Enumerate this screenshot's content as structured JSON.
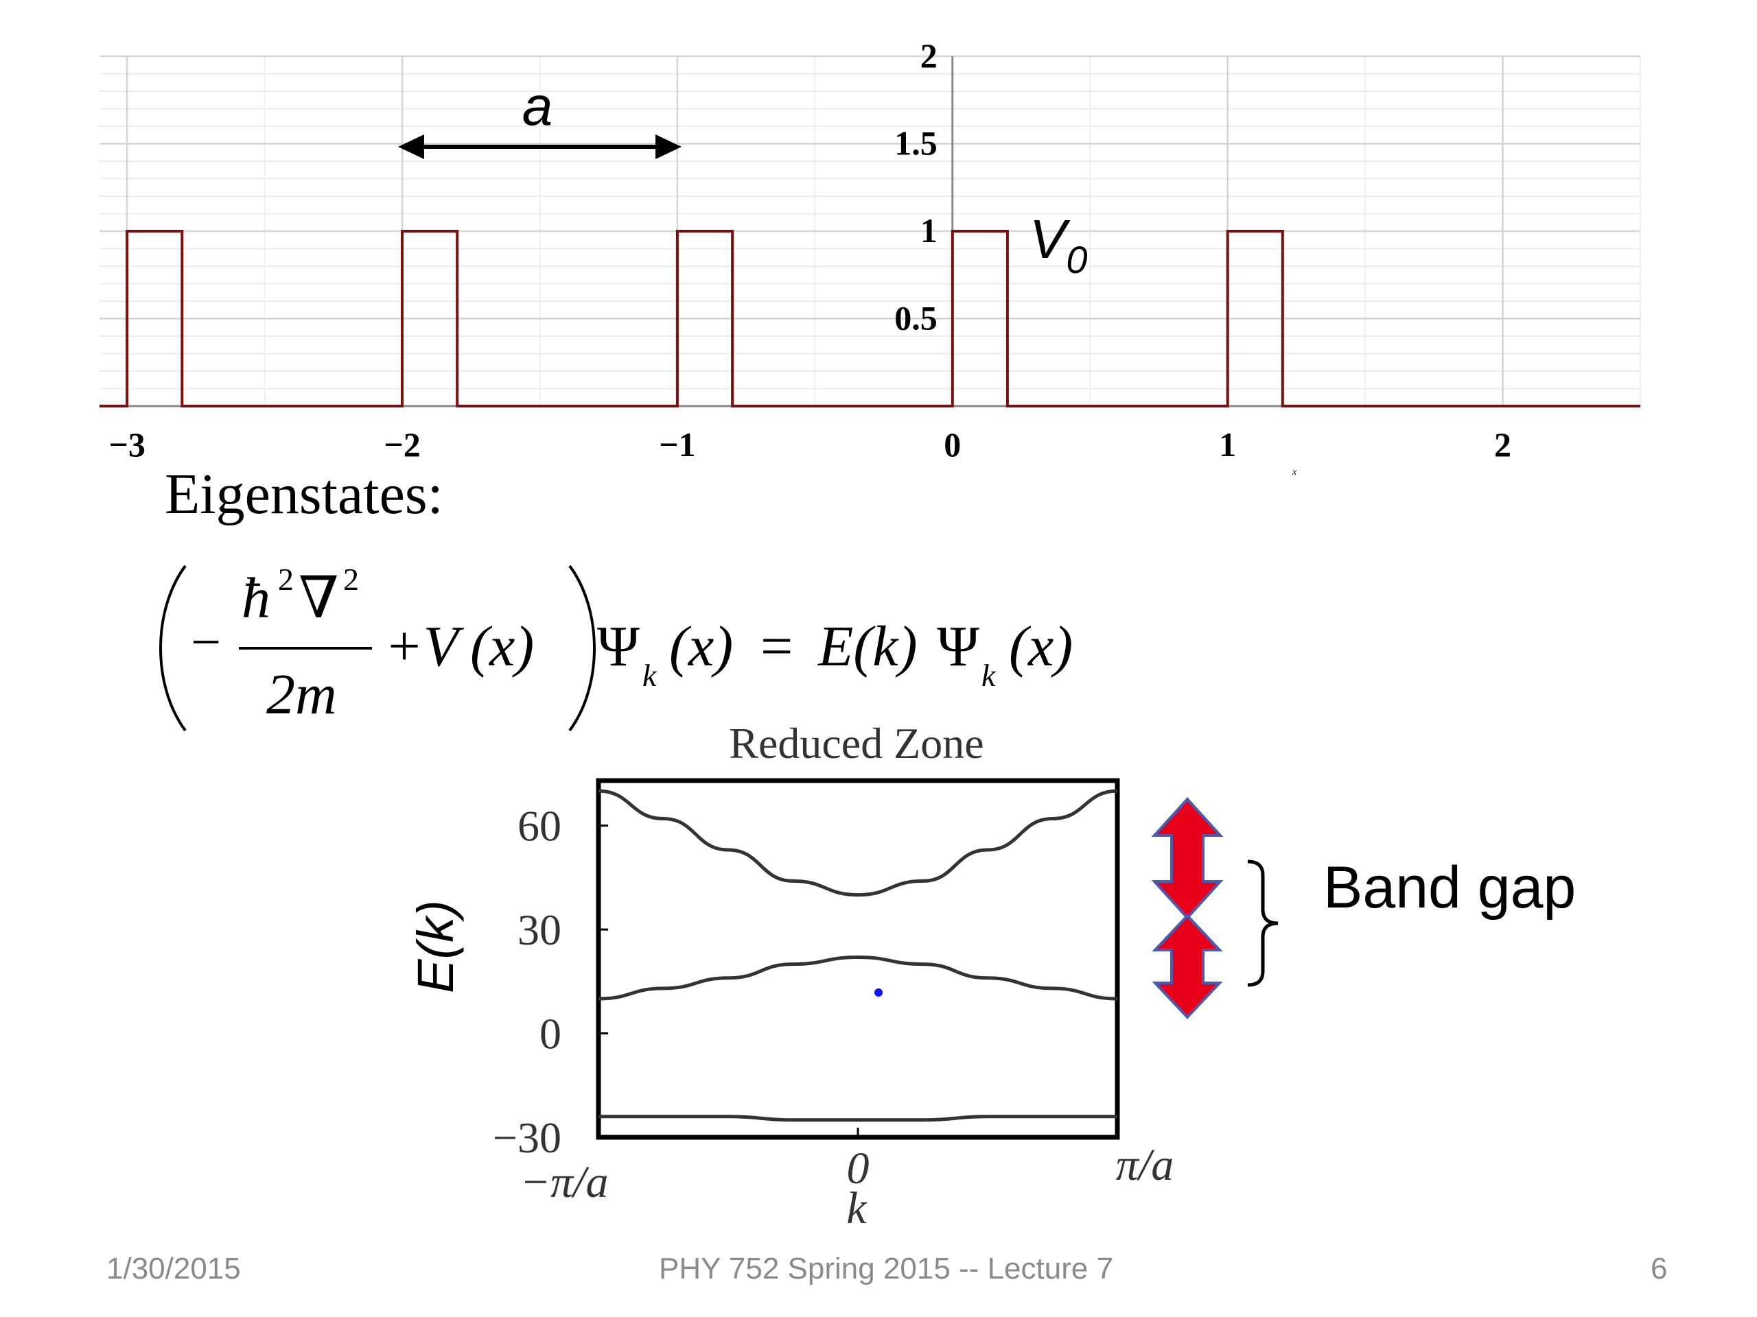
{
  "chart_data": [
    {
      "type": "line",
      "title": "",
      "xlabel": "x",
      "ylabel": "",
      "xlim": [
        -3.1,
        2.5
      ],
      "ylim": [
        0,
        2
      ],
      "x_ticks": [
        "−3",
        "−2",
        "−1",
        "0",
        "1",
        "2"
      ],
      "y_ticks": [
        "0.5",
        "1",
        "1.5",
        "2"
      ],
      "grid": true,
      "series": [
        {
          "name": "",
          "description_values": "periodic rectangular barriers of height 1 and width 0.2 starting at integer x",
          "x": [
            -3.1,
            -3,
            -3,
            -2.8,
            -2.8,
            -2,
            -2,
            -1.8,
            -1.8,
            -1,
            -1,
            -0.8,
            -0.8,
            0,
            0,
            0.2,
            0.2,
            1,
            1,
            1.2,
            1.2,
            2.5
          ],
          "y": [
            0,
            0,
            1,
            1,
            0,
            0,
            1,
            1,
            0,
            0,
            1,
            1,
            0,
            0,
            1,
            1,
            0,
            0,
            1,
            1,
            0,
            0
          ]
        }
      ],
      "annotations": {
        "period_label": "a",
        "potential_label_main": "V",
        "potential_label_sub": "0"
      }
    },
    {
      "type": "line",
      "title": "Reduced Zone",
      "xlabel": "k",
      "ylabel": "E(k)",
      "ylim": [
        -30,
        73
      ],
      "x_ticks": [
        "−π/a",
        "0",
        "π/a"
      ],
      "y_ticks": [
        "60",
        "30",
        "0",
        "−30"
      ],
      "grid": false,
      "series": [
        {
          "name": "",
          "x": [
            -1,
            -0.75,
            -0.5,
            -0.25,
            0,
            0.25,
            0.5,
            0.75,
            1
          ],
          "y": [
            70,
            62,
            53,
            44,
            40,
            44,
            53,
            62,
            70
          ]
        },
        {
          "name": "",
          "x": [
            -1,
            -0.75,
            -0.5,
            -0.25,
            0,
            0.25,
            0.5,
            0.75,
            1
          ],
          "y": [
            10,
            13,
            16,
            20,
            22,
            20,
            16,
            13,
            10
          ]
        },
        {
          "name": "",
          "x": [
            -1,
            -0.5,
            -0.25,
            0,
            0.25,
            0.5,
            1
          ],
          "y": [
            -24,
            -24,
            -25,
            -25,
            -25,
            -24,
            -24
          ]
        }
      ]
    }
  ],
  "text": {
    "heading": "Eigenstates:",
    "band_gap": "Band gap",
    "footer_date": "1/30/2015",
    "footer_course": "PHY 752  Spring 2015 -- Lecture 7",
    "footer_page": "6"
  },
  "equation": {
    "minus": "−",
    "hbar": "ħ",
    "sup2a": "2",
    "nabla": "∇",
    "sup2b": "2",
    "denominator": "2m",
    "plus_V": "+V",
    "x_arg": "(x)",
    "psi": "Ψ",
    "sub_k": "k",
    "x_arg2": "(x)",
    "equals": "=",
    "E_k": "E(k)",
    "psi2": "Ψ",
    "sub_k2": "k",
    "x_arg3": "(x)"
  },
  "colors": {
    "potential": "#7a1010",
    "arrow_fill": "#e8001a",
    "arrow_stroke": "#4a5bb0",
    "grid": "#d4d4d4",
    "footer": "#8a8a8a"
  }
}
